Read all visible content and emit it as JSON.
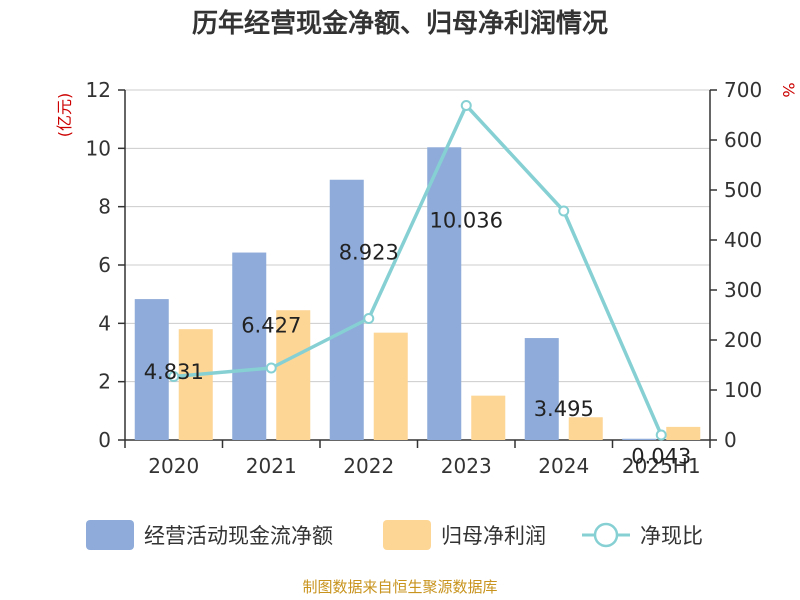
{
  "title": "历年经营现金净额、归母净利润情况",
  "source": "制图数据来自恒生聚源数据库",
  "colors": {
    "cash_flow": "#8eabd9",
    "net_profit": "#fdd696",
    "ratio": "#86d0d4",
    "left_unit": "#cc0000",
    "right_unit": "#cc0000",
    "source": "#c8941e",
    "grid": "#cccccc",
    "axis": "#333333"
  },
  "chart_data": {
    "type": "bar",
    "title": "历年经营现金净额、归母净利润情况",
    "categories": [
      "2020",
      "2021",
      "2022",
      "2023",
      "2024",
      "2025H1"
    ],
    "y_left": {
      "unit": "(亿元)",
      "min": 0,
      "max": 12,
      "ticks": [
        0,
        2,
        4,
        6,
        8,
        10,
        12
      ]
    },
    "y_right": {
      "unit": "%",
      "min": 0,
      "max": 700,
      "ticks": [
        0,
        100,
        200,
        300,
        400,
        500,
        600,
        700
      ]
    },
    "grid": true,
    "legend_position": "bottom",
    "series": [
      {
        "name": "经营活动现金流净额",
        "type": "bar",
        "axis": "left",
        "values": [
          4.831,
          6.427,
          8.923,
          10.036,
          3.495,
          0.043
        ],
        "labels": [
          "4.831",
          "6.427",
          "8.923",
          "10.036",
          "3.495",
          "0.043"
        ]
      },
      {
        "name": "归母净利润",
        "type": "bar",
        "axis": "left",
        "values": [
          3.8,
          4.45,
          3.68,
          1.52,
          0.78,
          0.45
        ]
      },
      {
        "name": "净现比",
        "type": "line",
        "axis": "right",
        "values": [
          127,
          144,
          243,
          669,
          458,
          10
        ]
      }
    ]
  }
}
